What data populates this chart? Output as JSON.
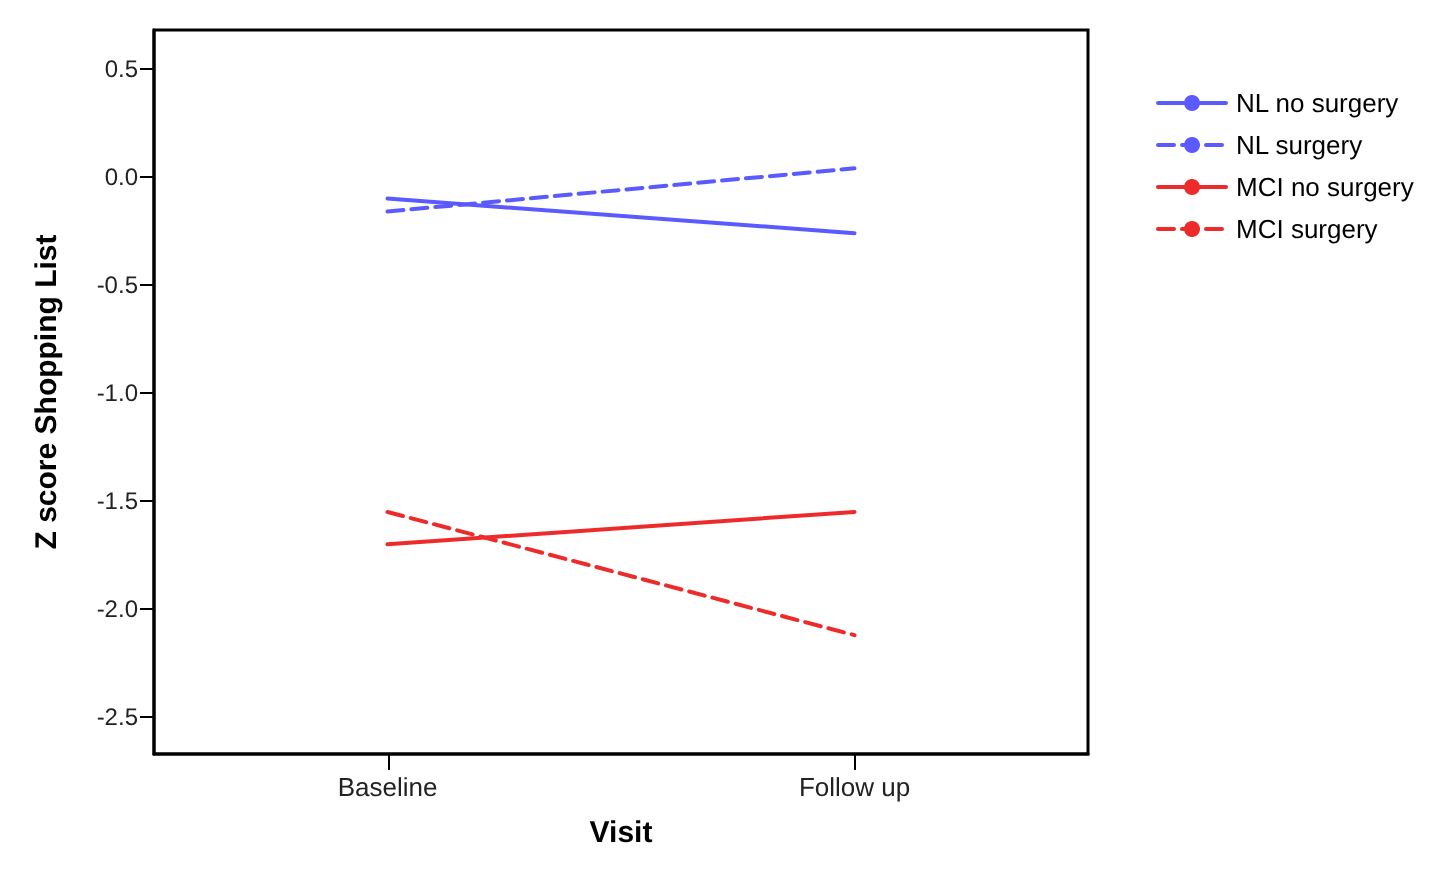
{
  "chart_data": {
    "type": "line",
    "xlabel": "Visit",
    "ylabel": "Z score Shopping List",
    "categories": [
      "Baseline",
      "Follow up"
    ],
    "series": [
      {
        "name": "NL no surgery",
        "color": "#5a5aff",
        "line_style": "solid",
        "values": [
          -0.1,
          -0.26
        ]
      },
      {
        "name": "NL surgery",
        "color": "#5a5aff",
        "line_style": "dashed",
        "values": [
          -0.16,
          0.04
        ]
      },
      {
        "name": "MCI no surgery",
        "color": "#ee2b2b",
        "line_style": "solid",
        "values": [
          -1.7,
          -1.55
        ]
      },
      {
        "name": "MCI surgery",
        "color": "#ee2b2b",
        "line_style": "dashed",
        "values": [
          -1.55,
          -2.12
        ]
      }
    ],
    "ylim": [
      -2.67,
      0.68
    ],
    "yticks": [
      {
        "value": -2.5,
        "label": "-2.5"
      },
      {
        "value": -2,
        "label": "-2.0"
      },
      {
        "value": -1.5,
        "label": "-1.5"
      },
      {
        "value": -1,
        "label": "-1.0"
      },
      {
        "value": -0.5,
        "label": "-0.5"
      },
      {
        "value": 0,
        "label": "0.0"
      },
      {
        "value": 0.5,
        "label": "0.5"
      }
    ],
    "grid": false,
    "legend": "top right",
    "marker": "none"
  }
}
